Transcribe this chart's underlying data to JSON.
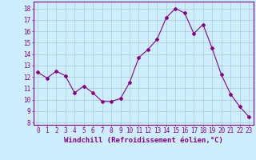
{
  "x": [
    0,
    1,
    2,
    3,
    4,
    5,
    6,
    7,
    8,
    9,
    10,
    11,
    12,
    13,
    14,
    15,
    16,
    17,
    18,
    19,
    20,
    21,
    22,
    23
  ],
  "y": [
    12.4,
    11.9,
    12.5,
    12.1,
    10.6,
    11.2,
    10.6,
    9.85,
    9.85,
    10.1,
    11.5,
    13.7,
    14.4,
    15.3,
    17.2,
    18.0,
    17.6,
    15.8,
    16.6,
    14.5,
    12.2,
    10.5,
    9.4,
    8.5
  ],
  "line_color": "#880088",
  "marker": "D",
  "marker_size": 2,
  "bg_color": "#cceeff",
  "grid_color": "#aacccc",
  "xlabel": "Windchill (Refroidissement éolien,°C)",
  "xlabel_fontsize": 6.5,
  "xtick_labels": [
    "0",
    "1",
    "2",
    "3",
    "4",
    "5",
    "6",
    "7",
    "8",
    "9",
    "10",
    "11",
    "12",
    "13",
    "14",
    "15",
    "16",
    "17",
    "18",
    "19",
    "20",
    "21",
    "22",
    "23"
  ],
  "ytick_labels": [
    "8",
    "9",
    "10",
    "11",
    "12",
    "13",
    "14",
    "15",
    "16",
    "17",
    "18"
  ],
  "ylim": [
    7.8,
    18.6
  ],
  "xlim": [
    -0.5,
    23.5
  ],
  "tick_fontsize": 5.5,
  "tick_color": "#880088",
  "spine_color": "#880088"
}
